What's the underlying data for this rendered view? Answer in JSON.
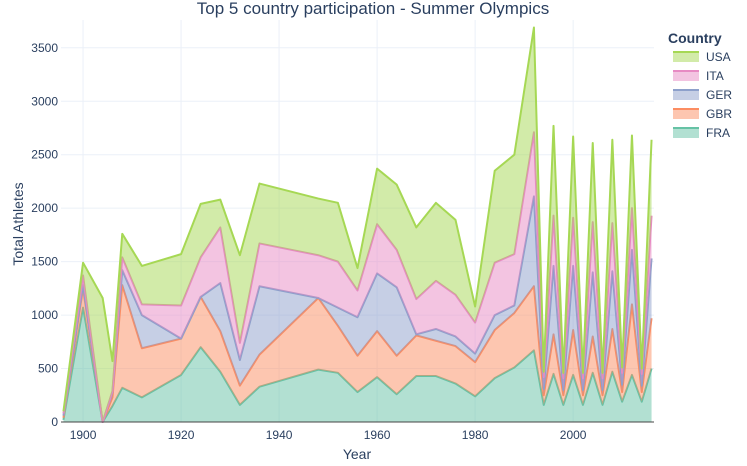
{
  "chart_data": {
    "type": "area",
    "stacked": true,
    "title": "Top 5 country participation - Summer Olympics",
    "xlabel": "Year",
    "ylabel": "Total Athletes",
    "xlim": [
      1895.5,
      2016.5
    ],
    "ylim": [
      0,
      3760
    ],
    "x_ticks": [
      1900,
      1920,
      1940,
      1960,
      1980,
      2000
    ],
    "y_ticks": [
      0,
      500,
      1000,
      1500,
      2000,
      2500,
      3000,
      3500
    ],
    "grid": true,
    "legend": {
      "title": "Country",
      "placement": "top-right",
      "order": [
        "USA",
        "ITA",
        "GER",
        "GBR",
        "FRA"
      ]
    },
    "x": [
      1896,
      1900,
      1904,
      1906,
      1908,
      1912,
      1920,
      1924,
      1928,
      1932,
      1936,
      1948,
      1952,
      1956,
      1960,
      1964,
      1968,
      1972,
      1976,
      1980,
      1984,
      1988,
      1992,
      1994,
      1996,
      1998,
      2000,
      2002,
      2004,
      2006,
      2008,
      2010,
      2012,
      2014,
      2016
    ],
    "series": [
      {
        "name": "FRA",
        "color": "#66c2a5",
        "values": [
          20,
          1070,
          0,
          150,
          320,
          230,
          440,
          700,
          470,
          160,
          330,
          490,
          460,
          280,
          420,
          260,
          430,
          430,
          360,
          240,
          410,
          510,
          670,
          160,
          450,
          160,
          440,
          160,
          460,
          160,
          470,
          190,
          440,
          190,
          500
        ]
      },
      {
        "name": "GBR",
        "color": "#fc8d62",
        "values": [
          20,
          180,
          0,
          80,
          960,
          460,
          340,
          470,
          380,
          180,
          300,
          670,
          440,
          340,
          430,
          360,
          380,
          330,
          350,
          320,
          450,
          510,
          600,
          90,
          370,
          90,
          420,
          90,
          340,
          90,
          400,
          90,
          660,
          90,
          470
        ]
      },
      {
        "name": "GER",
        "color": "#8da0cb",
        "values": [
          20,
          30,
          0,
          50,
          140,
          310,
          0,
          0,
          450,
          240,
          640,
          0,
          170,
          360,
          540,
          640,
          10,
          110,
          90,
          80,
          140,
          70,
          840,
          60,
          640,
          50,
          600,
          50,
          600,
          50,
          540,
          70,
          510,
          60,
          560
        ]
      },
      {
        "name": "ITA",
        "color": "#e78ac3",
        "values": [
          20,
          90,
          0,
          10,
          120,
          100,
          310,
          370,
          520,
          160,
          400,
          400,
          430,
          250,
          460,
          350,
          330,
          450,
          390,
          290,
          490,
          480,
          600,
          110,
          470,
          110,
          450,
          110,
          470,
          110,
          450,
          110,
          390,
          110,
          400
        ]
      },
      {
        "name": "USA",
        "color": "#a6d854",
        "values": [
          20,
          120,
          1160,
          280,
          220,
          360,
          480,
          500,
          260,
          820,
          560,
          530,
          550,
          210,
          520,
          610,
          670,
          730,
          700,
          150,
          860,
          930,
          980,
          50,
          840,
          50,
          760,
          50,
          740,
          50,
          780,
          50,
          680,
          50,
          710
        ]
      }
    ]
  }
}
